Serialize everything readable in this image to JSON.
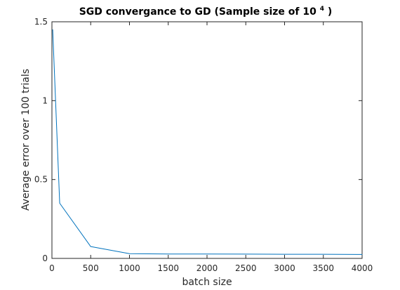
{
  "chart_data": {
    "type": "line",
    "title": {
      "main": "SGD convergance to GD (Sample size of 10",
      "superscript": "4",
      "suffix": ")"
    },
    "xlabel": "batch size",
    "ylabel": "Average error over 100 trials",
    "xlim": [
      0,
      4000
    ],
    "ylim": [
      0,
      1.5
    ],
    "xticks": [
      0,
      500,
      1000,
      1500,
      2000,
      2500,
      3000,
      3500,
      4000
    ],
    "yticks": [
      0,
      0.5,
      1,
      1.5
    ],
    "xtick_labels": [
      "0",
      "500",
      "1000",
      "1500",
      "2000",
      "2500",
      "3000",
      "3500",
      "4000"
    ],
    "ytick_labels": [
      "0",
      "0.5",
      "1",
      "1.5"
    ],
    "grid": false,
    "box": true,
    "series": [
      {
        "color": "#0072BD",
        "x": [
          10,
          100,
          500,
          1000,
          1500,
          2000,
          2500,
          3000,
          3500,
          4000
        ],
        "y": [
          1.45,
          0.35,
          0.075,
          0.03,
          0.028,
          0.028,
          0.027,
          0.026,
          0.026,
          0.025
        ]
      }
    ]
  }
}
